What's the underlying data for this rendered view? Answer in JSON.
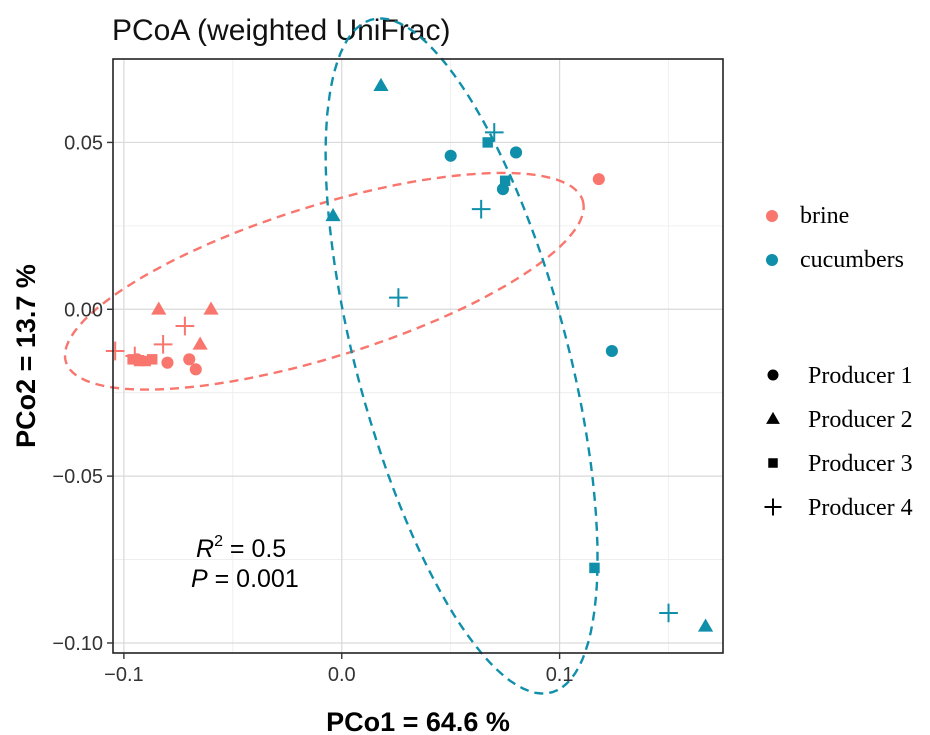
{
  "chart_data": {
    "type": "scatter",
    "title": "PCoA (weighted UniFrac)",
    "xlabel": "PCo1 = 64.6 %",
    "ylabel": "PCo2 = 13.7 %",
    "xlim": [
      -0.105,
      0.175
    ],
    "ylim": [
      -0.103,
      0.075
    ],
    "x_ticks": [
      -0.1,
      0.0,
      0.1
    ],
    "x_tick_labels": [
      "−0.1",
      "0.0",
      "0.1"
    ],
    "y_ticks": [
      -0.1,
      -0.05,
      0.0,
      0.05
    ],
    "y_tick_labels": [
      "−0.10",
      "−0.05",
      "0.00",
      "0.05"
    ],
    "grid": true,
    "annotation": {
      "r2_symbol": "R",
      "r2_exp": "2",
      "r2_value": " = 0.5",
      "p_symbol": "P",
      "p_value": " = 0.001"
    },
    "legend_color": {
      "position": "right",
      "entries": [
        {
          "name": "brine",
          "color": "#F8766D"
        },
        {
          "name": "cucumbers",
          "color": "#0F8FAA"
        }
      ]
    },
    "legend_shape": {
      "position": "right",
      "entries": [
        {
          "name": "Producer 1",
          "shape": "circle"
        },
        {
          "name": "Producer 2",
          "shape": "triangle"
        },
        {
          "name": "Producer 3",
          "shape": "square"
        },
        {
          "name": "Producer 4",
          "shape": "plus"
        }
      ]
    },
    "series": [
      {
        "name": "brine",
        "color": "#F8766D",
        "ellipse": {
          "cx": -0.008,
          "cy": 0.0084,
          "rx": 0.1212,
          "ry": 0.0232,
          "angle_deg": 11.0
        },
        "points": [
          {
            "x": 0.118,
            "y": 0.039,
            "producer": "Producer 1"
          },
          {
            "x": -0.094,
            "y": -0.015,
            "producer": "Producer 1"
          },
          {
            "x": -0.08,
            "y": -0.016,
            "producer": "Producer 1"
          },
          {
            "x": -0.07,
            "y": -0.015,
            "producer": "Producer 1"
          },
          {
            "x": -0.067,
            "y": -0.018,
            "producer": "Producer 1"
          },
          {
            "x": -0.084,
            "y": 0.0,
            "producer": "Producer 2"
          },
          {
            "x": -0.06,
            "y": 0.0,
            "producer": "Producer 2"
          },
          {
            "x": -0.065,
            "y": -0.0105,
            "producer": "Producer 2"
          },
          {
            "x": -0.096,
            "y": -0.015,
            "producer": "Producer 3"
          },
          {
            "x": -0.093,
            "y": -0.0155,
            "producer": "Producer 3"
          },
          {
            "x": -0.09,
            "y": -0.0155,
            "producer": "Producer 3"
          },
          {
            "x": -0.087,
            "y": -0.015,
            "producer": "Producer 3"
          },
          {
            "x": -0.104,
            "y": -0.0125,
            "producer": "Producer 4"
          },
          {
            "x": -0.095,
            "y": -0.014,
            "producer": "Producer 4"
          },
          {
            "x": -0.082,
            "y": -0.0105,
            "producer": "Producer 4"
          },
          {
            "x": -0.072,
            "y": -0.005,
            "producer": "Producer 4"
          }
        ]
      },
      {
        "name": "cucumbers",
        "color": "#0F8FAA",
        "ellipse": {
          "cx": 0.055,
          "cy": -0.014,
          "rx": 0.1095,
          "ry": 0.0462,
          "angle_deg": -65.0
        },
        "points": [
          {
            "x": 0.05,
            "y": 0.046,
            "producer": "Producer 1"
          },
          {
            "x": 0.08,
            "y": 0.047,
            "producer": "Producer 1"
          },
          {
            "x": 0.074,
            "y": 0.036,
            "producer": "Producer 1"
          },
          {
            "x": 0.124,
            "y": -0.0125,
            "producer": "Producer 1"
          },
          {
            "x": 0.018,
            "y": 0.067,
            "producer": "Producer 2"
          },
          {
            "x": -0.004,
            "y": 0.028,
            "producer": "Producer 2"
          },
          {
            "x": 0.167,
            "y": -0.095,
            "producer": "Producer 2"
          },
          {
            "x": 0.067,
            "y": 0.05,
            "producer": "Producer 3"
          },
          {
            "x": 0.075,
            "y": 0.0385,
            "producer": "Producer 3"
          },
          {
            "x": 0.116,
            "y": -0.0775,
            "producer": "Producer 3"
          },
          {
            "x": 0.07,
            "y": 0.053,
            "producer": "Producer 4"
          },
          {
            "x": 0.064,
            "y": 0.03,
            "producer": "Producer 4"
          },
          {
            "x": 0.026,
            "y": 0.0035,
            "producer": "Producer 4"
          },
          {
            "x": 0.15,
            "y": -0.091,
            "producer": "Producer 4"
          }
        ]
      }
    ]
  }
}
